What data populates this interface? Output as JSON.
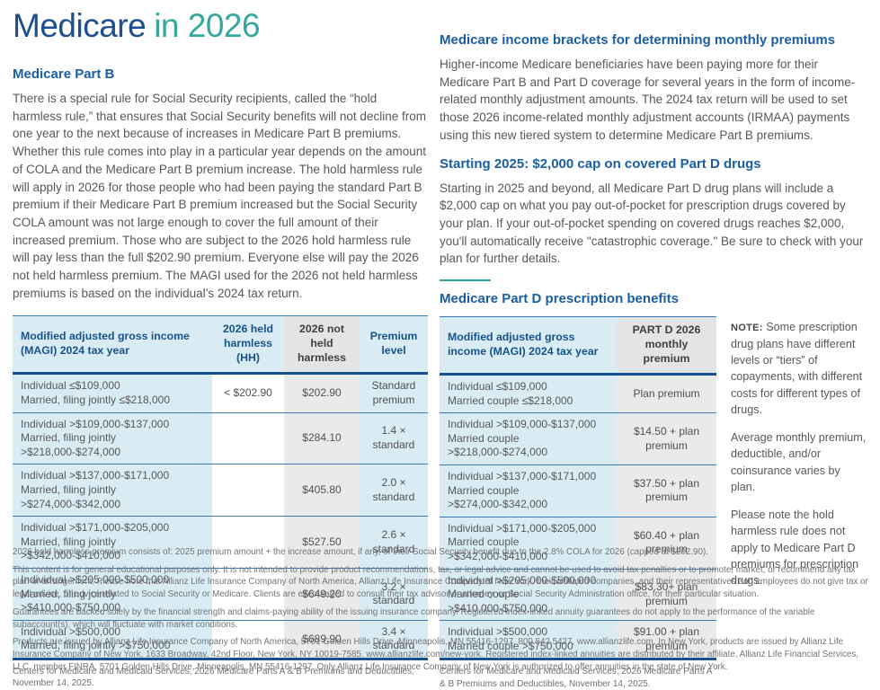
{
  "title": {
    "part1": "Medicare",
    "part2": "in 2026"
  },
  "colors": {
    "navy": "#1d4f8f",
    "teal": "#35a79c",
    "heading_blue": "#1a5fa5",
    "table_blue_bg": "#d9ecf4",
    "table_gray_bg": "#e9eaea",
    "rule_blue": "#3d7ab3",
    "body_gray": "#57585a"
  },
  "part_b": {
    "heading": "Medicare Part B",
    "body": "There is a special rule for Social Security recipients, called the “hold harmless rule,” that ensures that Social Security benefits will not decline from one year to the next because of increases in Medicare Part B premiums. Whether this rule comes into play in a particular year depends on the amount of COLA and the Medicare Part B premium increase. The hold harmless rule will apply in 2026 for those people who had been paying the standard Part B premium if their Medicare Part B premium increased but the Social Security COLA amount was not large enough to cover the full amount of their increased premium. Those who are subject to the 2026 hold harmless rule will pay less than the full $202.90 premium. Everyone else will pay the 2026 not held harmless premium. The MAGI used for the 2026 not held harmless premiums is based on the individual’s 2024 tax return.",
    "table": {
      "headers": {
        "magi": "Modified adjusted gross income (MAGI) 2024 tax year",
        "held_harmless": "2026 held harmless (HH)",
        "not_held_harmless": "2026 not held harmless",
        "premium_level": "Premium level"
      },
      "rows": [
        {
          "individual": "Individual ≤$109,000",
          "married": "Married, filing jointly ≤$218,000",
          "hh": "< $202.90",
          "nhh": "$202.90",
          "level": "Standard premium"
        },
        {
          "individual": "Individual >$109,000-$137,000",
          "married": "Married, filing jointly >$218,000-$274,000",
          "hh": "",
          "nhh": "$284.10",
          "level": "1.4 × standard"
        },
        {
          "individual": "Individual >$137,000-$171,000",
          "married": "Married, filing jointly >$274,000-$342,000",
          "hh": "",
          "nhh": "$405.80",
          "level": "2.0 × standard"
        },
        {
          "individual": "Individual >$171,000-$205,000",
          "married": "Married, filing jointly >$342,000-$410,000",
          "hh": "",
          "nhh": "$527.50",
          "level": "2.6 × standard"
        },
        {
          "individual": "Individual >$205,000-$500,000",
          "married": "Married, filing jointly >$410,000-$750,000",
          "hh": "",
          "nhh": "$649.20",
          "level": "3.2 × standard"
        },
        {
          "individual": "Individual >$500,000",
          "married": "Married, filing jointly >$750,000",
          "hh": "",
          "nhh": "$689.90",
          "level": "3.4 × standard"
        }
      ]
    },
    "source": "Centers for Medicare and Medicaid Services, 2026 Medicare Parts A & B Premiums and Deductibles, November 14, 2025."
  },
  "income_brackets": {
    "heading": "Medicare income brackets for determining monthly premiums",
    "body": "Higher-income Medicare beneficiaries have been paying more for their Medicare Part B and Part D coverage for several years in the form of income-related monthly adjustment amounts. The 2024 tax return will be used to set those 2026 income-related monthly adjustment accounts (IRMAA) payments using this new tiered system to determine Medicare Part B premiums."
  },
  "cap": {
    "heading": "Starting 2025: $2,000 cap on covered Part D drugs",
    "body": "Starting in 2025 and beyond, all Medicare Part D drug plans will include a $2,000 cap on what you pay out-of-pocket for prescription drugs covered by your plan. If your out-of-pocket spending on covered drugs reaches $2,000, you'll automatically receive \"catastrophic coverage.\" Be sure to check with your plan for further details."
  },
  "part_d": {
    "heading": "Medicare Part D prescription benefits",
    "table": {
      "headers": {
        "magi": "Modified adjusted gross income (MAGI) 2024 tax year",
        "premium": "PART D 2026 monthly premium"
      },
      "rows": [
        {
          "individual": "Individual ≤$109,000",
          "married": "Married couple ≤$218,000",
          "premium": "Plan premium"
        },
        {
          "individual": "Individual >$109,000-$137,000",
          "married": "Married couple >$218,000-$274,000",
          "premium": "$14.50 + plan premium"
        },
        {
          "individual": "Individual >$137,000-$171,000",
          "married": "Married couple >$274,000-$342,000",
          "premium": "$37.50 + plan premium"
        },
        {
          "individual": "Individual >$171,000-$205,000",
          "married": "Married couple >$342,000-$410,000",
          "premium": "$60.40 + plan premium"
        },
        {
          "individual": "Individual >$205,000-$500,000",
          "married": "Married couple >$410,000-$750,000",
          "premium": "$83.30+ plan premium"
        },
        {
          "individual": "Individual >$500,000",
          "married": "Married couple >$750,000",
          "premium": "$91.00 + plan premium"
        }
      ]
    },
    "source": "Centers for Medicare and Medicaid Services, 2026 Medicare Parts A & B Premiums and Deductibles, November 14, 2025."
  },
  "note": {
    "label": "NOTE:",
    "p1": "Some prescription drug plans have different levels or “tiers” of copayments, with different costs for different types of drugs.",
    "p2": "Average monthly premium, deductible, and/or coinsurance varies by plan.",
    "p3": "Please note the hold harmless rule does not apply to Medicare Part D premiums for prescription drugs."
  },
  "disclaimers": {
    "p1": "2026 held harmless premium consists of: 2025 premium amount + the increase amount, if any, of their Social Security benefit due to the 2.8% COLA for 2026 (capped at $202.90).",
    "p2": "This content is for general educational purposes only. It is not intended to provide product recommendations, tax, or legal advice and cannot be used to avoid tax penalties or to promote, market, or recommend any tax plan or arrangement. Please note that Allianz Life Insurance Company of North America, Allianz Life Insurance Company of New York, their affiliated companies, and their representatives and employees do not give tax or legal advice, or advice related to Social Security or Medicare. Clients are encouraged to consult their tax advisor or attorney, or Social Security Administration office, for their particular situation.",
    "p3": "Guarantees are backed solely by the financial strength and claims-paying ability of the issuing insurance company. Registered index-linked annuity guarantees do not apply to the performance of the variable subaccount(s), which will fluctuate with market conditions.",
    "p4": "Products are issued by Allianz Life Insurance Company of North America, 5701 Golden Hills Drive, Minneapolis, MN 55416-1297. 800.542.5427. www.allianzlife.com. In New York, products are issued by Allianz Life Insurance Company of New York, 1633 Broadway, 42nd Floor, New York, NY 10019-7585. www.allianzlife.com/new-york. Registered index-linked annuities are distributed by their affiliate, Allianz Life Financial Services, LLC, member FINRA, 5701 Golden Hills Drive, Minneapolis, MN 55416-1297. Only Allianz Life Insurance Company of New York is authorized to offer annuities in the state of New York."
  }
}
